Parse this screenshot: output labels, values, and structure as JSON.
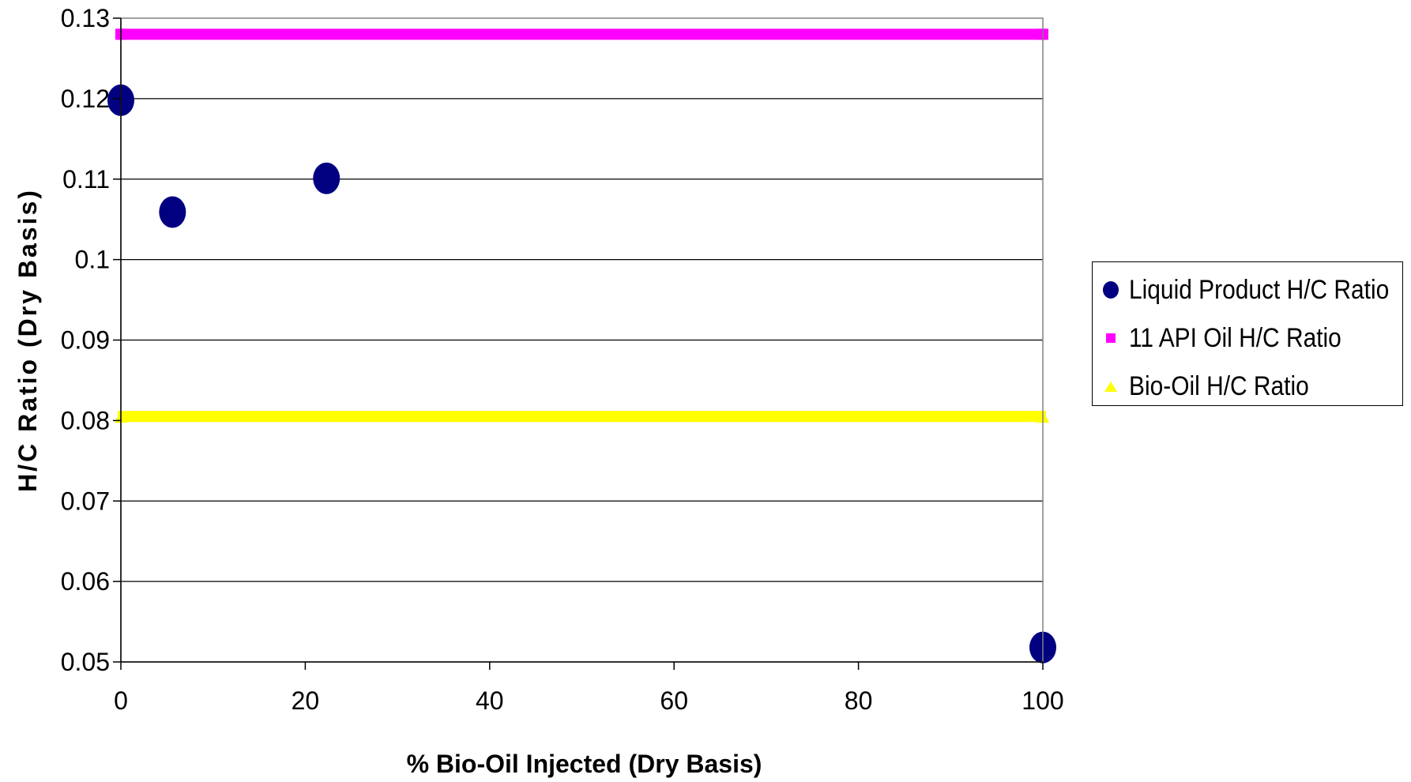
{
  "chart_data": {
    "type": "scatter",
    "title": "",
    "xlabel": "% Bio-Oil Injected (Dry Basis)",
    "ylabel": "H/C Ratio (Dry Basis)",
    "xlim": [
      0,
      100
    ],
    "ylim": [
      0.05,
      0.13
    ],
    "x_ticks": [
      "0",
      "20",
      "40",
      "60",
      "80",
      "100"
    ],
    "y_ticks": [
      "0.13",
      "0.12",
      "0.11",
      "0.1",
      "0.09",
      "0.08",
      "0.07",
      "0.06",
      "0.05"
    ],
    "grid": "horizontal",
    "legend_position": "right",
    "series": [
      {
        "name": "Liquid Product H/C Ratio",
        "kind": "markers",
        "marker": "circle",
        "color": "#000080",
        "x": [
          0,
          5.6,
          22.3,
          100
        ],
        "y": [
          0.1198,
          0.1059,
          0.1101,
          0.0518
        ]
      },
      {
        "name": "11 API Oil H/C Ratio",
        "kind": "constant-line",
        "marker": "square",
        "color": "#FF00FF",
        "x": [
          0,
          100
        ],
        "y": [
          0.128,
          0.128
        ]
      },
      {
        "name": "Bio-Oil H/C Ratio",
        "kind": "constant-line",
        "marker": "triangle",
        "color": "#FFFF00",
        "x": [
          0,
          100
        ],
        "y": [
          0.0805,
          0.0805
        ]
      }
    ]
  }
}
